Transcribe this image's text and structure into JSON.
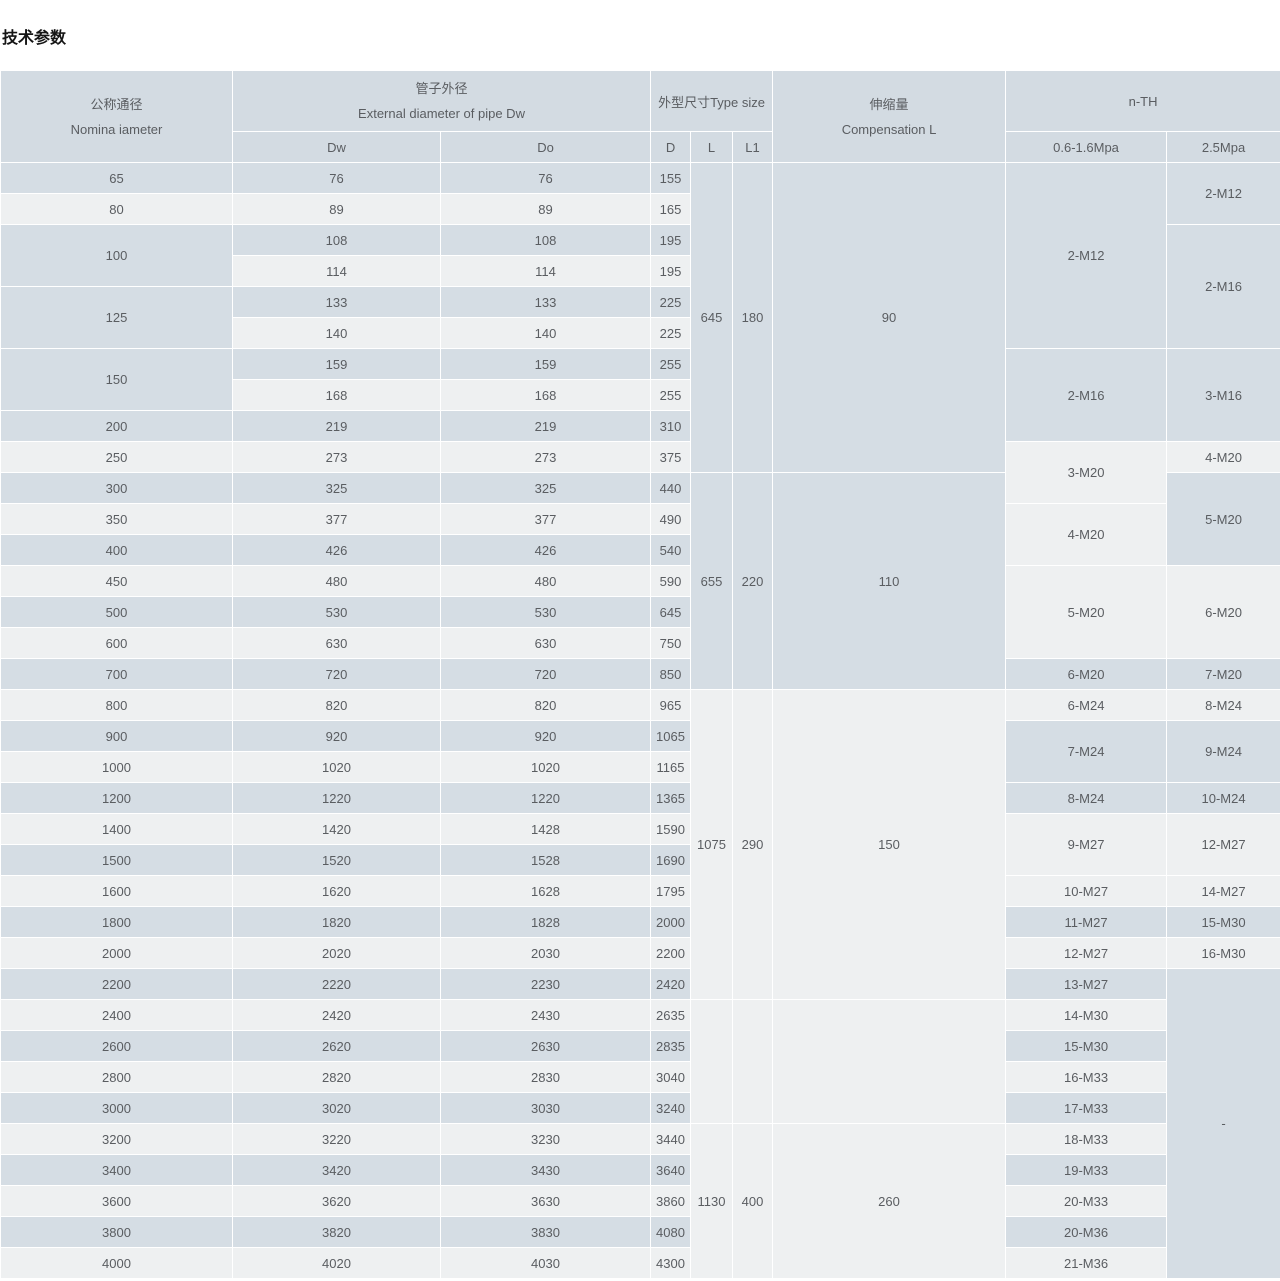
{
  "page_title": "技术参数",
  "table": {
    "header": {
      "nominal_zh": "公称通径",
      "nominal_en": "Nomina iameter",
      "pipe_zh": "管子外径",
      "pipe_en": "External diameter of pipe Dw",
      "pipe_sub": [
        "Dw",
        "Do"
      ],
      "type_size": "外型尺寸Type size",
      "type_sub": [
        "D",
        "L",
        "L1"
      ],
      "comp_zh": "伸缩量",
      "comp_en": "Compensation L",
      "nth": "n-TH",
      "nth_sub": [
        "0.6-1.6Mpa",
        "2.5Mpa"
      ]
    },
    "columns": [
      "nominal-diameter",
      "dw",
      "do",
      "d",
      "l",
      "l1",
      "compensation",
      "nth-0.6-1.6mpa",
      "nth-2.5mpa"
    ],
    "rows": [
      [
        {
          "t": "65"
        },
        {
          "t": "76"
        },
        {
          "t": "76"
        },
        {
          "t": "155"
        },
        {
          "t": "645",
          "r": 10
        },
        {
          "t": "180",
          "r": 10
        },
        {
          "t": "90",
          "r": 10
        },
        {
          "t": "2-M12",
          "r": 6
        },
        {
          "t": "2-M12",
          "r": 2
        }
      ],
      [
        {
          "t": "80"
        },
        {
          "t": "89"
        },
        {
          "t": "89"
        },
        {
          "t": "165"
        }
      ],
      [
        {
          "t": "100",
          "r": 2
        },
        {
          "t": "108"
        },
        {
          "t": "108"
        },
        {
          "t": "195"
        },
        {
          "t": "2-M16",
          "r": 4
        }
      ],
      [
        {
          "t": "114"
        },
        {
          "t": "114"
        },
        {
          "t": "195"
        }
      ],
      [
        {
          "t": "125",
          "r": 2
        },
        {
          "t": "133"
        },
        {
          "t": "133"
        },
        {
          "t": "225"
        }
      ],
      [
        {
          "t": "140"
        },
        {
          "t": "140"
        },
        {
          "t": "225"
        }
      ],
      [
        {
          "t": "150",
          "r": 2
        },
        {
          "t": "159"
        },
        {
          "t": "159"
        },
        {
          "t": "255"
        },
        {
          "t": "2-M16",
          "r": 3
        },
        {
          "t": "3-M16",
          "r": 3
        }
      ],
      [
        {
          "t": "168"
        },
        {
          "t": "168"
        },
        {
          "t": "255"
        }
      ],
      [
        {
          "t": "200"
        },
        {
          "t": "219"
        },
        {
          "t": "219"
        },
        {
          "t": "310"
        }
      ],
      [
        {
          "t": "250"
        },
        {
          "t": "273"
        },
        {
          "t": "273"
        },
        {
          "t": "375"
        },
        {
          "t": "3-M20",
          "r": 2
        },
        {
          "t": "4-M20"
        }
      ],
      [
        {
          "t": "300"
        },
        {
          "t": "325"
        },
        {
          "t": "325"
        },
        {
          "t": "440"
        },
        {
          "t": "655",
          "r": 7
        },
        {
          "t": "220",
          "r": 7
        },
        {
          "t": "110",
          "r": 7
        },
        {
          "t": "5-M20",
          "r": 3
        }
      ],
      [
        {
          "t": "350"
        },
        {
          "t": "377"
        },
        {
          "t": "377"
        },
        {
          "t": "490"
        },
        {
          "t": "4-M20",
          "r": 2
        }
      ],
      [
        {
          "t": "400"
        },
        {
          "t": "426"
        },
        {
          "t": "426"
        },
        {
          "t": "540"
        }
      ],
      [
        {
          "t": "450"
        },
        {
          "t": "480"
        },
        {
          "t": "480"
        },
        {
          "t": "590"
        },
        {
          "t": "5-M20",
          "r": 3
        },
        {
          "t": "6-M20",
          "r": 3
        }
      ],
      [
        {
          "t": "500"
        },
        {
          "t": "530"
        },
        {
          "t": "530"
        },
        {
          "t": "645"
        }
      ],
      [
        {
          "t": "600"
        },
        {
          "t": "630"
        },
        {
          "t": "630"
        },
        {
          "t": "750"
        }
      ],
      [
        {
          "t": "700"
        },
        {
          "t": "720"
        },
        {
          "t": "720"
        },
        {
          "t": "850"
        },
        {
          "t": "6-M20"
        },
        {
          "t": "7-M20"
        }
      ],
      [
        {
          "t": "800"
        },
        {
          "t": "820"
        },
        {
          "t": "820"
        },
        {
          "t": "965"
        },
        {
          "t": "1075",
          "r": 10
        },
        {
          "t": "290",
          "r": 10
        },
        {
          "t": "150",
          "r": 10
        },
        {
          "t": "6-M24"
        },
        {
          "t": "8-M24"
        }
      ],
      [
        {
          "t": "900"
        },
        {
          "t": "920"
        },
        {
          "t": "920"
        },
        {
          "t": "1065"
        },
        {
          "t": "7-M24",
          "r": 2
        },
        {
          "t": "9-M24",
          "r": 2
        }
      ],
      [
        {
          "t": "1000"
        },
        {
          "t": "1020"
        },
        {
          "t": "1020"
        },
        {
          "t": "1165"
        }
      ],
      [
        {
          "t": "1200"
        },
        {
          "t": "1220"
        },
        {
          "t": "1220"
        },
        {
          "t": "1365"
        },
        {
          "t": "8-M24"
        },
        {
          "t": "10-M24"
        }
      ],
      [
        {
          "t": "1400"
        },
        {
          "t": "1420"
        },
        {
          "t": "1428"
        },
        {
          "t": "1590"
        },
        {
          "t": "9-M27",
          "r": 2
        },
        {
          "t": "12-M27",
          "r": 2
        }
      ],
      [
        {
          "t": "1500"
        },
        {
          "t": "1520"
        },
        {
          "t": "1528"
        },
        {
          "t": "1690"
        }
      ],
      [
        {
          "t": "1600"
        },
        {
          "t": "1620"
        },
        {
          "t": "1628"
        },
        {
          "t": "1795"
        },
        {
          "t": "10-M27"
        },
        {
          "t": "14-M27"
        }
      ],
      [
        {
          "t": "1800"
        },
        {
          "t": "1820"
        },
        {
          "t": "1828"
        },
        {
          "t": "2000"
        },
        {
          "t": "11-M27"
        },
        {
          "t": "15-M30"
        }
      ],
      [
        {
          "t": "2000"
        },
        {
          "t": "2020"
        },
        {
          "t": "2030"
        },
        {
          "t": "2200"
        },
        {
          "t": "12-M27"
        },
        {
          "t": "16-M30"
        }
      ],
      [
        {
          "t": "2200"
        },
        {
          "t": "2220"
        },
        {
          "t": "2230"
        },
        {
          "t": "2420"
        },
        {
          "t": "13-M27"
        },
        {
          "t": "-",
          "r": 10
        }
      ],
      [
        {
          "t": "2400"
        },
        {
          "t": "2420"
        },
        {
          "t": "2430"
        },
        {
          "t": "2635"
        },
        {
          "t": "",
          "r": 4
        },
        {
          "t": "",
          "r": 4
        },
        {
          "t": "",
          "r": 4
        },
        {
          "t": "14-M30"
        }
      ],
      [
        {
          "t": "2600"
        },
        {
          "t": "2620"
        },
        {
          "t": "2630"
        },
        {
          "t": "2835"
        },
        {
          "t": "15-M30"
        }
      ],
      [
        {
          "t": "2800"
        },
        {
          "t": "2820"
        },
        {
          "t": "2830"
        },
        {
          "t": "3040"
        },
        {
          "t": "16-M33"
        }
      ],
      [
        {
          "t": "3000"
        },
        {
          "t": "3020"
        },
        {
          "t": "3030"
        },
        {
          "t": "3240"
        },
        {
          "t": "17-M33"
        }
      ],
      [
        {
          "t": "3200"
        },
        {
          "t": "3220"
        },
        {
          "t": "3230"
        },
        {
          "t": "3440"
        },
        {
          "t": "1130",
          "r": 5
        },
        {
          "t": "400",
          "r": 5
        },
        {
          "t": "260",
          "r": 5
        },
        {
          "t": "18-M33"
        }
      ],
      [
        {
          "t": "3400"
        },
        {
          "t": "3420"
        },
        {
          "t": "3430"
        },
        {
          "t": "3640"
        },
        {
          "t": "19-M33"
        }
      ],
      [
        {
          "t": "3600"
        },
        {
          "t": "3620"
        },
        {
          "t": "3630"
        },
        {
          "t": "3860"
        },
        {
          "t": "20-M33"
        }
      ],
      [
        {
          "t": "3800"
        },
        {
          "t": "3820"
        },
        {
          "t": "3830"
        },
        {
          "t": "4080"
        },
        {
          "t": "20-M36"
        }
      ],
      [
        {
          "t": "4000"
        },
        {
          "t": "4020"
        },
        {
          "t": "4030"
        },
        {
          "t": "4300"
        },
        {
          "t": "21-M36"
        }
      ]
    ]
  },
  "colors": {
    "stripe_dark": "#d5dde4",
    "stripe_light": "#eef0f1",
    "header_bg": "#d3dbe2",
    "border": "#ffffff",
    "text": "#5a5d61"
  }
}
